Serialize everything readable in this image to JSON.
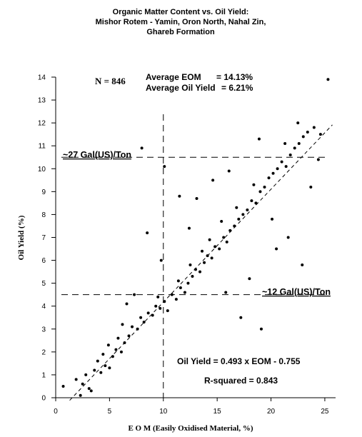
{
  "chart_data": {
    "type": "scatter",
    "title_lines": [
      "Organic Matter Content vs. Oil Yield:",
      "Mishor Rotem - Yamin, Oron North, Nahal Zin,",
      "Ghareb  Formation"
    ],
    "xlabel": "E O M (Easily Oxidised Material, %)",
    "ylabel": "Oil Yield (%)",
    "xlim": [
      0,
      26
    ],
    "ylim": [
      0,
      14
    ],
    "x_ticks": [
      0,
      5,
      10,
      15,
      20,
      25
    ],
    "y_ticks": [
      0,
      1,
      2,
      3,
      4,
      5,
      6,
      7,
      8,
      9,
      10,
      11,
      12,
      13,
      14
    ],
    "stats": {
      "n_label": "N = 846",
      "avg_eom_label": "Average EOM",
      "avg_eom_value": "= 14.13%",
      "avg_oil_label": "Average Oil Yield",
      "avg_oil_value": "= 6.21%"
    },
    "regression": {
      "equation_label": "Oil Yield = 0.493 x EOM - 0.755",
      "r2_label": "R-squared = 0.843",
      "slope": 0.493,
      "intercept": -0.755
    },
    "reference_lines": {
      "horizontal": [
        {
          "y": 10.5,
          "label": "~27 Gal(US)/Ton"
        },
        {
          "y": 4.5,
          "label": "~12 Gal(US)/Ton"
        }
      ],
      "vertical": [
        {
          "x": 10
        }
      ]
    },
    "series": [
      {
        "points": [
          [
            0.7,
            0.5
          ],
          [
            2.3,
            0.1
          ],
          [
            2.5,
            0.6
          ],
          [
            3.1,
            0.4
          ],
          [
            3.3,
            0.3
          ],
          [
            1.9,
            0.8
          ],
          [
            2.8,
            1.0
          ],
          [
            3.6,
            1.2
          ],
          [
            4.2,
            1.1
          ],
          [
            4.6,
            1.4
          ],
          [
            3.9,
            1.6
          ],
          [
            5.0,
            1.3
          ],
          [
            4.4,
            1.9
          ],
          [
            5.3,
            1.8
          ],
          [
            5.6,
            2.1
          ],
          [
            4.9,
            2.3
          ],
          [
            6.1,
            2.0
          ],
          [
            5.8,
            2.6
          ],
          [
            6.4,
            2.4
          ],
          [
            6.8,
            2.7
          ],
          [
            7.1,
            3.1
          ],
          [
            6.2,
            3.2
          ],
          [
            7.6,
            3.0
          ],
          [
            7.9,
            3.5
          ],
          [
            8.2,
            3.3
          ],
          [
            8.6,
            3.7
          ],
          [
            9.0,
            3.6
          ],
          [
            9.3,
            4.0
          ],
          [
            9.7,
            3.9
          ],
          [
            10.1,
            4.2
          ],
          [
            10.4,
            3.8
          ],
          [
            9.5,
            4.4
          ],
          [
            10.8,
            4.5
          ],
          [
            11.2,
            4.3
          ],
          [
            11.6,
            4.8
          ],
          [
            12.0,
            4.6
          ],
          [
            11.4,
            5.1
          ],
          [
            12.3,
            5.0
          ],
          [
            12.7,
            5.3
          ],
          [
            13.0,
            5.6
          ],
          [
            12.5,
            5.8
          ],
          [
            13.4,
            5.5
          ],
          [
            13.8,
            5.9
          ],
          [
            14.1,
            6.2
          ],
          [
            13.6,
            6.4
          ],
          [
            14.5,
            6.1
          ],
          [
            14.8,
            6.6
          ],
          [
            15.2,
            6.5
          ],
          [
            14.3,
            6.9
          ],
          [
            15.6,
            7.0
          ],
          [
            15.9,
            6.8
          ],
          [
            16.2,
            7.3
          ],
          [
            16.6,
            7.5
          ],
          [
            15.4,
            7.7
          ],
          [
            17.0,
            7.8
          ],
          [
            17.4,
            8.0
          ],
          [
            16.8,
            8.3
          ],
          [
            17.8,
            8.2
          ],
          [
            18.2,
            8.6
          ],
          [
            18.6,
            8.5
          ],
          [
            19.0,
            9.0
          ],
          [
            18.4,
            9.3
          ],
          [
            19.4,
            9.2
          ],
          [
            19.8,
            9.6
          ],
          [
            20.2,
            9.8
          ],
          [
            20.6,
            10.0
          ],
          [
            21.0,
            10.3
          ],
          [
            21.4,
            10.1
          ],
          [
            21.8,
            10.6
          ],
          [
            22.2,
            10.9
          ],
          [
            22.6,
            11.1
          ],
          [
            23.0,
            11.4
          ],
          [
            23.4,
            11.6
          ],
          [
            24.0,
            11.8
          ],
          [
            24.6,
            11.5
          ],
          [
            25.3,
            13.9
          ],
          [
            8.0,
            10.9
          ],
          [
            10.1,
            10.1
          ],
          [
            8.5,
            7.2
          ],
          [
            12.4,
            7.4
          ],
          [
            13.1,
            8.7
          ],
          [
            14.6,
            9.5
          ],
          [
            17.2,
            3.5
          ],
          [
            19.1,
            3.0
          ],
          [
            20.5,
            6.5
          ],
          [
            21.6,
            7.0
          ],
          [
            22.9,
            5.8
          ],
          [
            21.3,
            11.1
          ],
          [
            18.9,
            11.3
          ],
          [
            16.1,
            9.9
          ],
          [
            11.5,
            8.8
          ],
          [
            9.8,
            6.0
          ],
          [
            7.3,
            4.5
          ],
          [
            6.6,
            4.1
          ],
          [
            15.8,
            4.6
          ],
          [
            18.0,
            5.2
          ],
          [
            20.1,
            7.8
          ],
          [
            23.7,
            9.2
          ],
          [
            24.4,
            10.4
          ],
          [
            22.5,
            12.0
          ]
        ]
      }
    ],
    "grid": false
  }
}
